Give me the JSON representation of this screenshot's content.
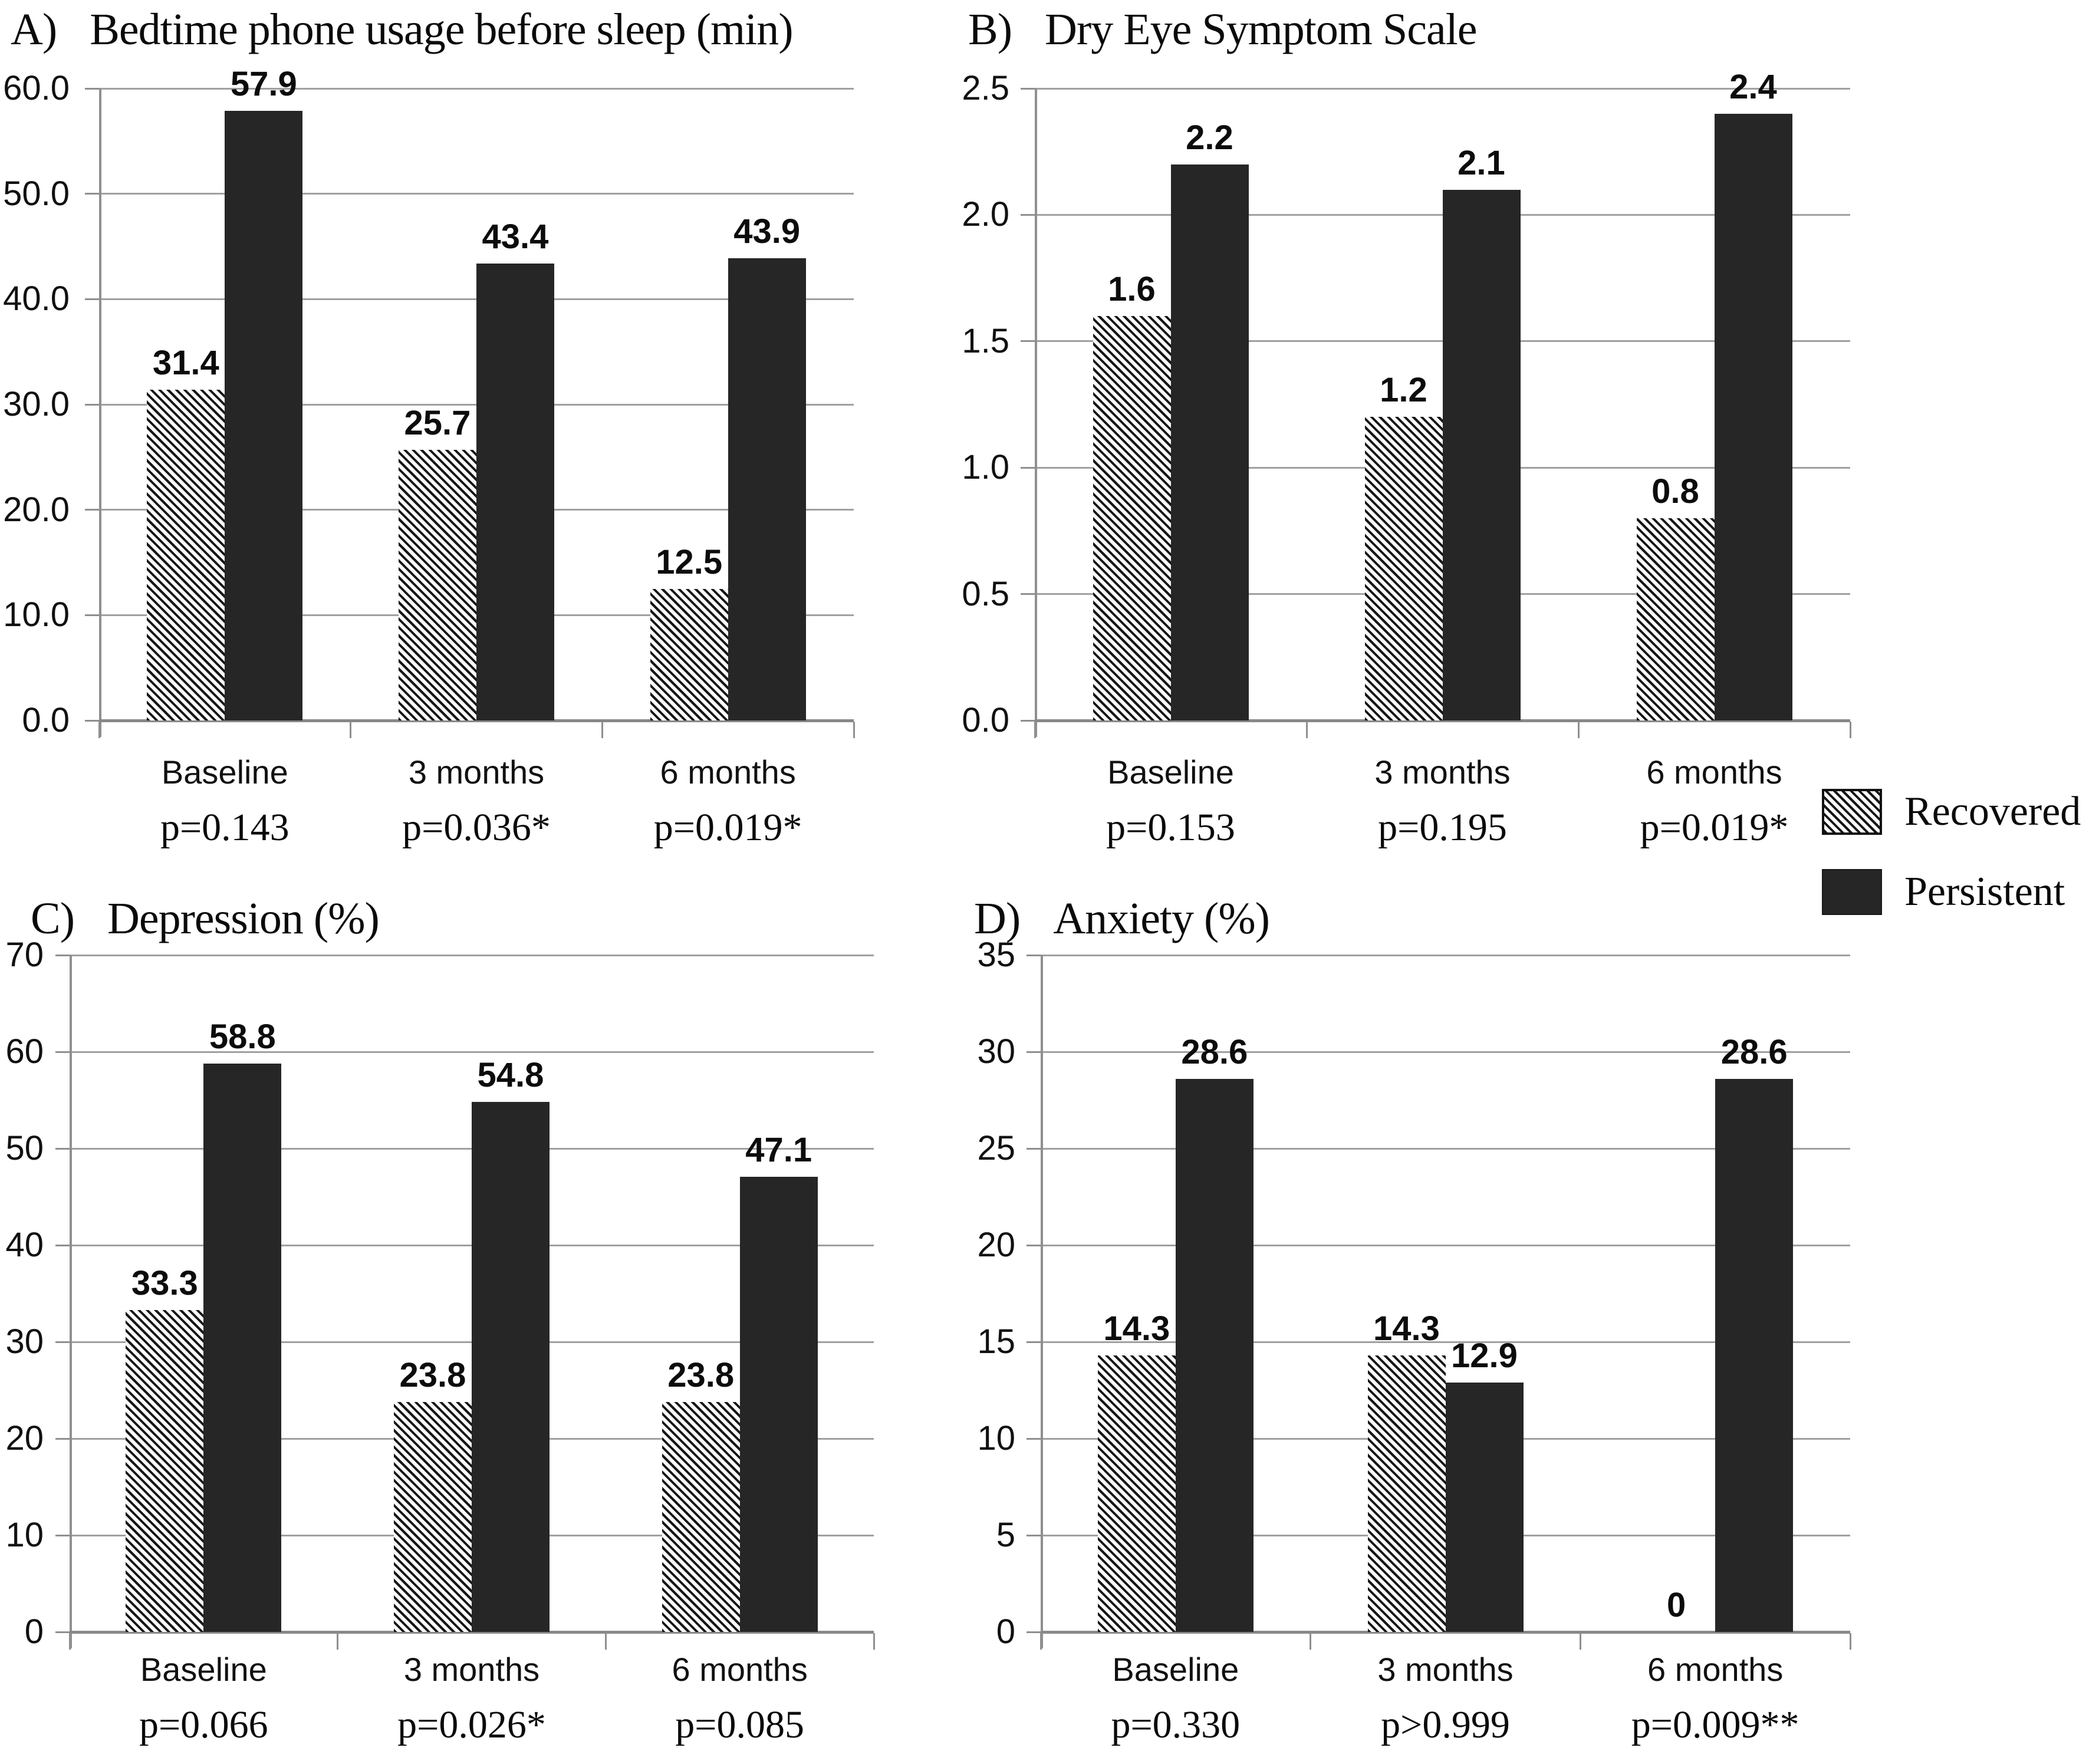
{
  "figure": {
    "background": "#ffffff",
    "colors": {
      "bar_solid": "#262626",
      "hatch_foreground": "#161616",
      "hatch_background": "#fcfcfc",
      "gridline": "#a0a0a0",
      "axis": "#888888",
      "text": "#0a0a0a"
    }
  },
  "legend": {
    "position": "right-middle",
    "items": [
      {
        "label": "Recovered",
        "swatch": "hatched-diagonal-swatch"
      },
      {
        "label": "Persistent",
        "swatch": "solid-black-swatch"
      }
    ]
  },
  "chart_data": [
    {
      "id": "A",
      "type": "bar",
      "panel_label": "A)",
      "title": "Bedtime phone usage before sleep (min)",
      "categories": [
        "Baseline",
        "3 months",
        "6 months"
      ],
      "series": [
        {
          "name": "Recovered",
          "values": [
            31.4,
            25.7,
            12.5
          ]
        },
        {
          "name": "Persistent",
          "values": [
            57.9,
            43.4,
            43.9
          ]
        }
      ],
      "data_labels": [
        [
          "31.4",
          "25.7",
          "12.5"
        ],
        [
          "57.9",
          "43.4",
          "43.9"
        ]
      ],
      "p_values": [
        "p=0.143",
        "p=0.036*",
        "p=0.019*"
      ],
      "ylim": [
        0,
        60
      ],
      "grid": true,
      "yticks": [
        {
          "v": 0,
          "label": "0.0"
        },
        {
          "v": 10,
          "label": "10.0"
        },
        {
          "v": 20,
          "label": "20.0"
        },
        {
          "v": 30,
          "label": "30.0"
        },
        {
          "v": 40,
          "label": "40.0"
        },
        {
          "v": 50,
          "label": "50.0"
        },
        {
          "v": 60,
          "label": "60.0"
        }
      ]
    },
    {
      "id": "B",
      "type": "bar",
      "panel_label": "B)",
      "title": "Dry Eye Symptom Scale",
      "categories": [
        "Baseline",
        "3 months",
        "6 months"
      ],
      "series": [
        {
          "name": "Recovered",
          "values": [
            1.6,
            1.2,
            0.8
          ]
        },
        {
          "name": "Persistent",
          "values": [
            2.2,
            2.1,
            2.4
          ]
        }
      ],
      "data_labels": [
        [
          "1.6",
          "1.2",
          "0.8"
        ],
        [
          "2.2",
          "2.1",
          "2.4"
        ]
      ],
      "p_values": [
        "p=0.153",
        "p=0.195",
        "p=0.019*"
      ],
      "ylim": [
        0,
        2.5
      ],
      "grid": true,
      "yticks": [
        {
          "v": 0,
          "label": "0.0"
        },
        {
          "v": 0.5,
          "label": "0.5"
        },
        {
          "v": 1,
          "label": "1.0"
        },
        {
          "v": 1.5,
          "label": "1.5"
        },
        {
          "v": 2,
          "label": "2.0"
        },
        {
          "v": 2.5,
          "label": "2.5"
        }
      ]
    },
    {
      "id": "C",
      "type": "bar",
      "panel_label": "C)",
      "title": "Depression (%)",
      "categories": [
        "Baseline",
        "3 months",
        "6 months"
      ],
      "series": [
        {
          "name": "Recovered",
          "values": [
            33.3,
            23.8,
            23.8
          ]
        },
        {
          "name": "Persistent",
          "values": [
            58.8,
            54.8,
            47.1
          ]
        }
      ],
      "data_labels": [
        [
          "33.3",
          "23.8",
          "23.8"
        ],
        [
          "58.8",
          "54.8",
          "47.1"
        ]
      ],
      "p_values": [
        "p=0.066",
        "p=0.026*",
        "p=0.085"
      ],
      "ylim": [
        0,
        70
      ],
      "grid": true,
      "yticks": [
        {
          "v": 0,
          "label": "0"
        },
        {
          "v": 10,
          "label": "10"
        },
        {
          "v": 20,
          "label": "20"
        },
        {
          "v": 30,
          "label": "30"
        },
        {
          "v": 40,
          "label": "40"
        },
        {
          "v": 50,
          "label": "50"
        },
        {
          "v": 60,
          "label": "60"
        },
        {
          "v": 70,
          "label": "70"
        }
      ]
    },
    {
      "id": "D",
      "type": "bar",
      "panel_label": "D)",
      "title": "Anxiety (%)",
      "categories": [
        "Baseline",
        "3 months",
        "6 months"
      ],
      "series": [
        {
          "name": "Recovered",
          "values": [
            14.3,
            14.3,
            0
          ]
        },
        {
          "name": "Persistent",
          "values": [
            28.6,
            12.9,
            28.6
          ]
        }
      ],
      "data_labels": [
        [
          "14.3",
          "14.3",
          "0"
        ],
        [
          "28.6",
          "12.9",
          "28.6"
        ]
      ],
      "p_values": [
        "p=0.330",
        "p>0.999",
        "p=0.009**"
      ],
      "ylim": [
        0,
        35
      ],
      "grid": true,
      "yticks": [
        {
          "v": 0,
          "label": "0"
        },
        {
          "v": 5,
          "label": "5"
        },
        {
          "v": 10,
          "label": "10"
        },
        {
          "v": 15,
          "label": "15"
        },
        {
          "v": 20,
          "label": "20"
        },
        {
          "v": 25,
          "label": "25"
        },
        {
          "v": 30,
          "label": "30"
        },
        {
          "v": 35,
          "label": "35"
        }
      ]
    }
  ]
}
